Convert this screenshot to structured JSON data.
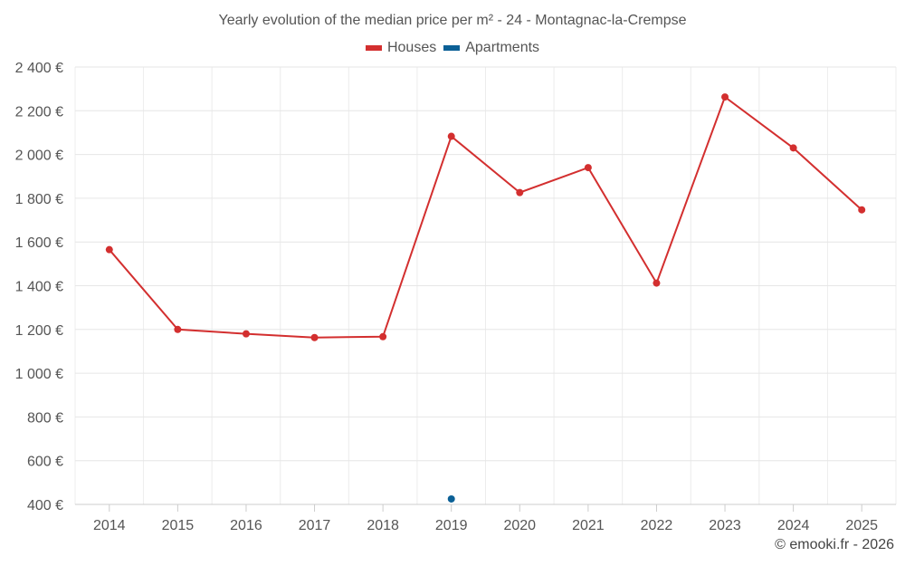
{
  "chart_data": {
    "type": "line",
    "title": "Yearly evolution of the median price per m² - 24 - Montagnac-la-Crempse",
    "categories": [
      "2014",
      "2015",
      "2016",
      "2017",
      "2018",
      "2019",
      "2020",
      "2021",
      "2022",
      "2023",
      "2024",
      "2025"
    ],
    "ylim": [
      400,
      2400
    ],
    "yticks": [
      400,
      600,
      800,
      1000,
      1200,
      1400,
      1600,
      1800,
      2000,
      2200,
      2400
    ],
    "ytick_labels": [
      "400 €",
      "600 €",
      "800 €",
      "1 000 €",
      "1 200 €",
      "1 400 €",
      "1 600 €",
      "1 800 €",
      "2 000 €",
      "2 200 €",
      "2 400 €"
    ],
    "grid": true,
    "legend_position": "top-center",
    "series": [
      {
        "name": "Houses",
        "color": "#d32f2f",
        "values": [
          1565,
          1200,
          1180,
          1163,
          1167,
          2083,
          1826,
          1940,
          1412,
          2263,
          2030,
          1747
        ]
      },
      {
        "name": "Apartments",
        "color": "#0b6096",
        "values": [
          null,
          null,
          null,
          null,
          null,
          425,
          null,
          null,
          null,
          null,
          null,
          null
        ]
      }
    ]
  },
  "copyright": "© emooki.fr - 2026"
}
